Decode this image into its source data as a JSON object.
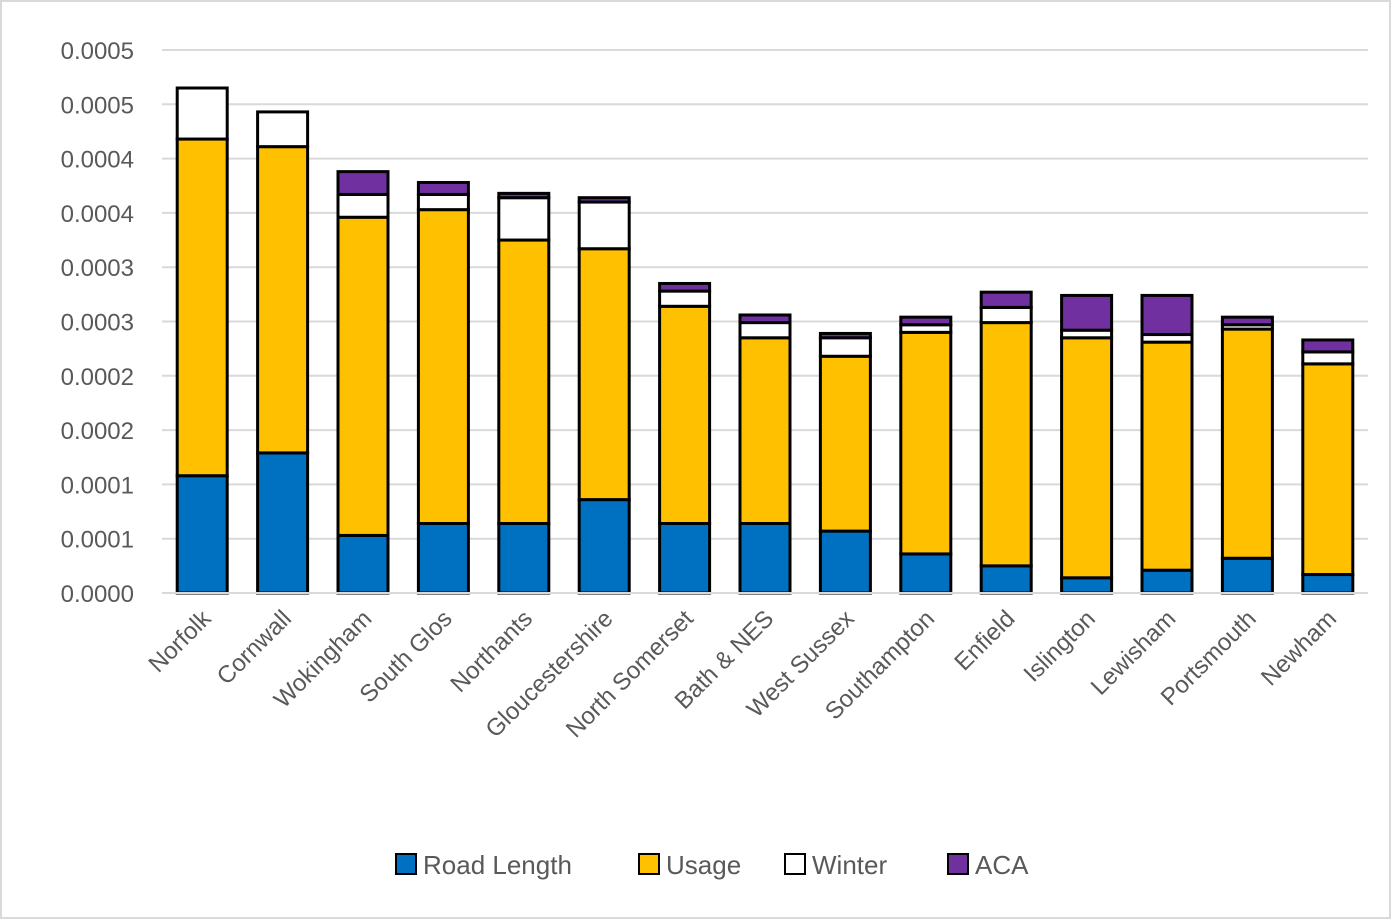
{
  "chart_data": {
    "type": "bar",
    "stacked": true,
    "categories": [
      "Norfolk",
      "Cornwall",
      "Wokingham",
      "South Glos",
      "Northants",
      "Gloucestershire",
      "North Somerset",
      "Bath & NES",
      "West Sussex",
      "Southampton",
      "Enfield",
      "Islington",
      "Lewisham",
      "Portsmouth",
      "Newham"
    ],
    "series": [
      {
        "name": "Road Length",
        "color": "#0070C0",
        "values": [
          0.000108,
          0.000129,
          5.3e-05,
          6.4e-05,
          6.4e-05,
          8.6e-05,
          6.4e-05,
          6.4e-05,
          5.7e-05,
          3.6e-05,
          2.5e-05,
          1.4e-05,
          2.1e-05,
          3.2e-05,
          1.7e-05
        ]
      },
      {
        "name": "Usage",
        "color": "#FFC000",
        "values": [
          0.00031,
          0.000282,
          0.000293,
          0.000289,
          0.000261,
          0.000231,
          0.0002,
          0.000171,
          0.000161,
          0.000204,
          0.000224,
          0.000221,
          0.00021,
          0.000211,
          0.000194
        ]
      },
      {
        "name": "Winter",
        "color": "#FFFFFF",
        "values": [
          4.7e-05,
          3.2e-05,
          2.1e-05,
          1.4e-05,
          3.9e-05,
          4.3e-05,
          1.4e-05,
          1.4e-05,
          1.7e-05,
          7e-06,
          1.4e-05,
          7e-06,
          7e-06,
          4e-06,
          1.1e-05
        ]
      },
      {
        "name": "ACA",
        "color": "#7030A0",
        "values": [
          0.0,
          0.0,
          2.1e-05,
          1.1e-05,
          4e-06,
          4e-06,
          7e-06,
          7e-06,
          4e-06,
          7e-06,
          1.4e-05,
          3.2e-05,
          3.6e-05,
          7e-06,
          1.1e-05
        ]
      }
    ],
    "y_tick_labels": [
      "0.0000",
      "0.0001",
      "0.0001",
      "0.0002",
      "0.0002",
      "0.0003",
      "0.0003",
      "0.0004",
      "0.0004",
      "0.0005",
      "0.0005"
    ],
    "ylim": [
      0,
      0.0005
    ],
    "grid": true,
    "legend_position": "bottom",
    "title": "",
    "xlabel": "",
    "ylabel": ""
  }
}
